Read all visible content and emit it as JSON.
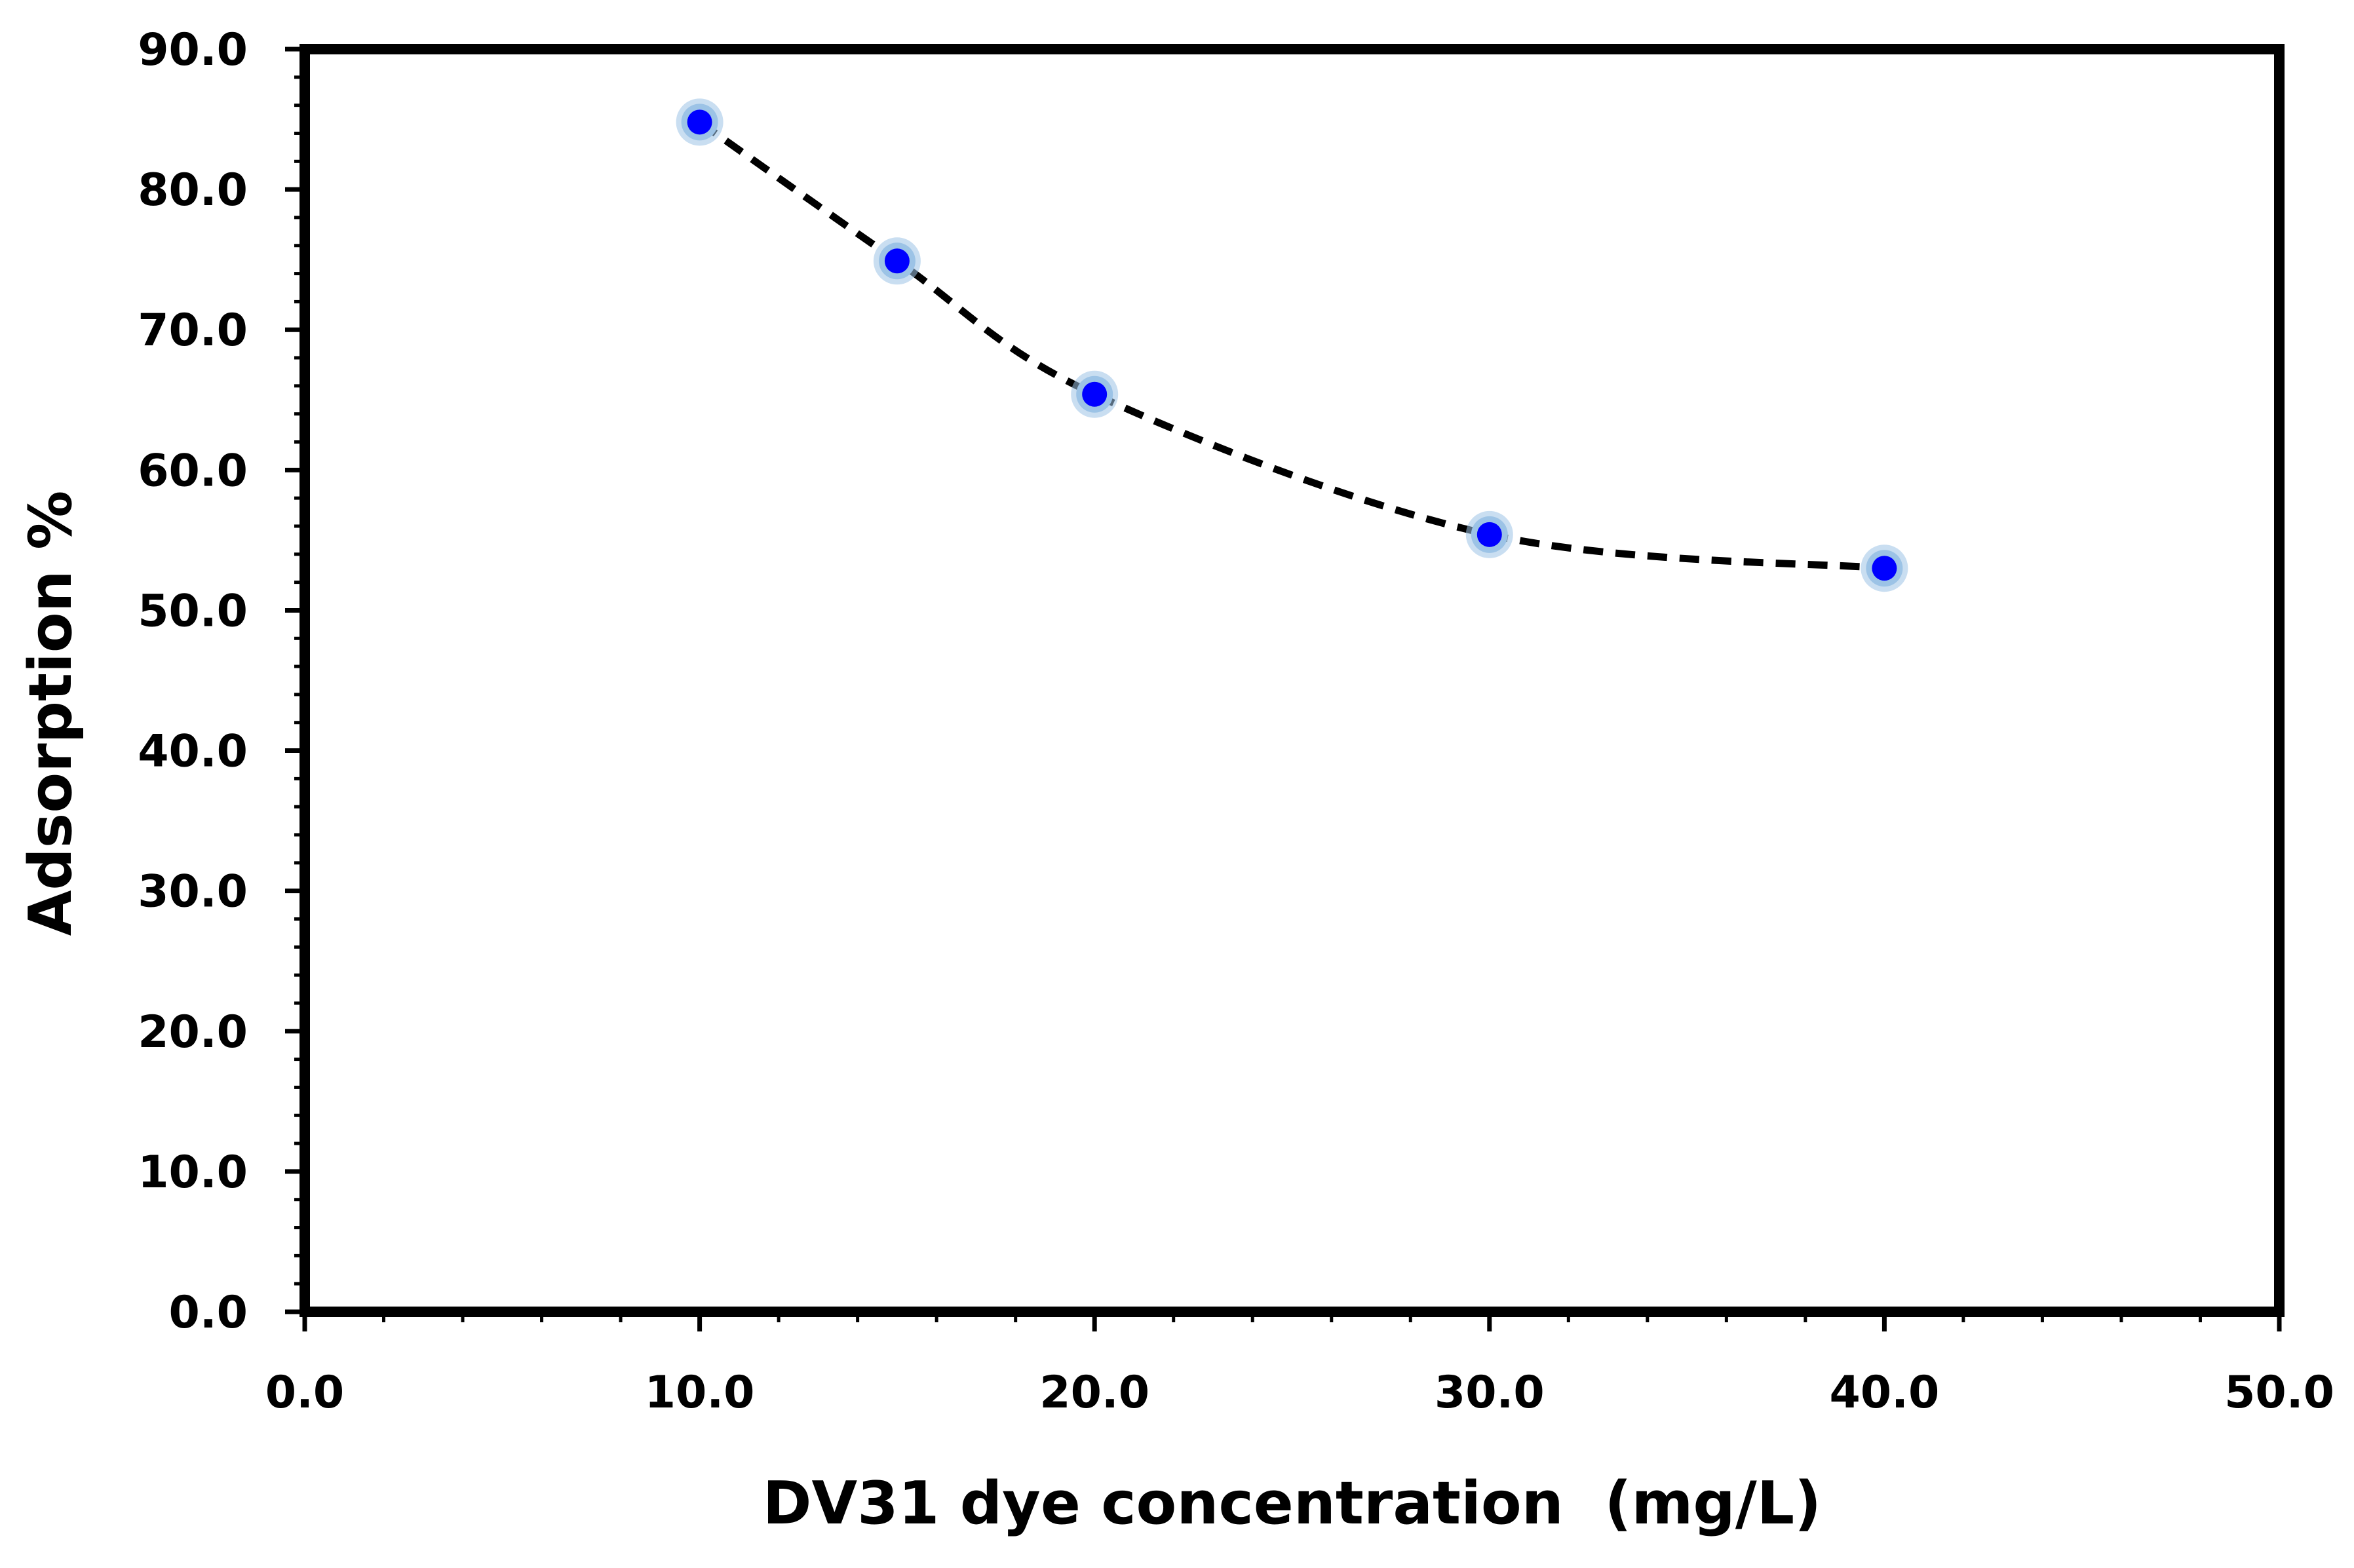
{
  "chart_data": {
    "type": "scatter",
    "title": "",
    "xlabel": "DV31 dye concentration  (mg/L)",
    "ylabel": "Adsorption %",
    "xlim": [
      0,
      50
    ],
    "ylim": [
      0,
      90
    ],
    "x_major_step": 10,
    "x_minor_step": 2,
    "y_major_step": 10,
    "y_minor_step": 2,
    "x_tick_labels": [
      "0.0",
      "10.0",
      "20.0",
      "30.0",
      "40.0",
      "50.0"
    ],
    "y_tick_labels": [
      "0.0",
      "10.0",
      "20.0",
      "30.0",
      "40.0",
      "50.0",
      "60.0",
      "70.0",
      "80.0",
      "90.0"
    ],
    "grid": false,
    "series": [
      {
        "name": "Adsorption %",
        "x": [
          10,
          15,
          20,
          30,
          40
        ],
        "y": [
          84.8,
          74.9,
          65.4,
          55.4,
          53.0
        ],
        "marker_color": "#0000ff",
        "marker_halo_color": "#9cc3e6",
        "line_style": "dashed",
        "line_color": "#000000"
      }
    ]
  }
}
